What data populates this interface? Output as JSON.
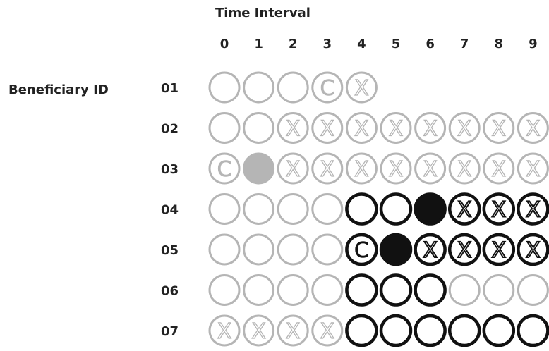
{
  "header": {
    "title": "Time Interval"
  },
  "y_axis": {
    "label": "Beneficiary ID"
  },
  "time_intervals": [
    "0",
    "1",
    "2",
    "3",
    "4",
    "5",
    "6",
    "7",
    "8",
    "9"
  ],
  "legend_markers": {
    "censored": "C"
  },
  "colors": {
    "light": "#b5b5b5",
    "dark": "#111111"
  },
  "rows": [
    {
      "id": "01",
      "cells": [
        {
          "t": 0,
          "tone": "light",
          "state": "open"
        },
        {
          "t": 1,
          "tone": "light",
          "state": "open"
        },
        {
          "t": 2,
          "tone": "light",
          "state": "open"
        },
        {
          "t": 3,
          "tone": "light",
          "state": "censored"
        },
        {
          "t": 4,
          "tone": "light",
          "state": "crossed"
        }
      ]
    },
    {
      "id": "02",
      "cells": [
        {
          "t": 0,
          "tone": "light",
          "state": "open"
        },
        {
          "t": 1,
          "tone": "light",
          "state": "open"
        },
        {
          "t": 2,
          "tone": "light",
          "state": "crossed"
        },
        {
          "t": 3,
          "tone": "light",
          "state": "crossed"
        },
        {
          "t": 4,
          "tone": "light",
          "state": "crossed"
        },
        {
          "t": 5,
          "tone": "light",
          "state": "crossed"
        },
        {
          "t": 6,
          "tone": "light",
          "state": "crossed"
        },
        {
          "t": 7,
          "tone": "light",
          "state": "crossed"
        },
        {
          "t": 8,
          "tone": "light",
          "state": "crossed"
        },
        {
          "t": 9,
          "tone": "light",
          "state": "crossed"
        }
      ]
    },
    {
      "id": "03",
      "cells": [
        {
          "t": 0,
          "tone": "light",
          "state": "censored"
        },
        {
          "t": 1,
          "tone": "light",
          "state": "filled"
        },
        {
          "t": 2,
          "tone": "light",
          "state": "crossed"
        },
        {
          "t": 3,
          "tone": "light",
          "state": "crossed"
        },
        {
          "t": 4,
          "tone": "light",
          "state": "crossed"
        },
        {
          "t": 5,
          "tone": "light",
          "state": "crossed"
        },
        {
          "t": 6,
          "tone": "light",
          "state": "crossed"
        },
        {
          "t": 7,
          "tone": "light",
          "state": "crossed"
        },
        {
          "t": 8,
          "tone": "light",
          "state": "crossed"
        },
        {
          "t": 9,
          "tone": "light",
          "state": "crossed"
        }
      ]
    },
    {
      "id": "04",
      "cells": [
        {
          "t": 0,
          "tone": "light",
          "state": "open"
        },
        {
          "t": 1,
          "tone": "light",
          "state": "open"
        },
        {
          "t": 2,
          "tone": "light",
          "state": "open"
        },
        {
          "t": 3,
          "tone": "light",
          "state": "open"
        },
        {
          "t": 4,
          "tone": "dark",
          "state": "open"
        },
        {
          "t": 5,
          "tone": "dark",
          "state": "open"
        },
        {
          "t": 6,
          "tone": "dark",
          "state": "filled"
        },
        {
          "t": 7,
          "tone": "dark",
          "state": "crossed"
        },
        {
          "t": 8,
          "tone": "dark",
          "state": "crossed"
        },
        {
          "t": 9,
          "tone": "dark",
          "state": "crossed"
        }
      ]
    },
    {
      "id": "05",
      "cells": [
        {
          "t": 0,
          "tone": "light",
          "state": "open"
        },
        {
          "t": 1,
          "tone": "light",
          "state": "open"
        },
        {
          "t": 2,
          "tone": "light",
          "state": "open"
        },
        {
          "t": 3,
          "tone": "light",
          "state": "open"
        },
        {
          "t": 4,
          "tone": "dark",
          "state": "censored"
        },
        {
          "t": 5,
          "tone": "dark",
          "state": "filled"
        },
        {
          "t": 6,
          "tone": "dark",
          "state": "crossed"
        },
        {
          "t": 7,
          "tone": "dark",
          "state": "crossed"
        },
        {
          "t": 8,
          "tone": "dark",
          "state": "crossed"
        },
        {
          "t": 9,
          "tone": "dark",
          "state": "crossed"
        }
      ]
    },
    {
      "id": "06",
      "cells": [
        {
          "t": 0,
          "tone": "light",
          "state": "open"
        },
        {
          "t": 1,
          "tone": "light",
          "state": "open"
        },
        {
          "t": 2,
          "tone": "light",
          "state": "open"
        },
        {
          "t": 3,
          "tone": "light",
          "state": "open"
        },
        {
          "t": 4,
          "tone": "dark",
          "state": "open"
        },
        {
          "t": 5,
          "tone": "dark",
          "state": "open"
        },
        {
          "t": 6,
          "tone": "dark",
          "state": "open"
        },
        {
          "t": 7,
          "tone": "light",
          "state": "open"
        },
        {
          "t": 8,
          "tone": "light",
          "state": "open"
        },
        {
          "t": 9,
          "tone": "light",
          "state": "open"
        }
      ]
    },
    {
      "id": "07",
      "cells": [
        {
          "t": 0,
          "tone": "light",
          "state": "crossed"
        },
        {
          "t": 1,
          "tone": "light",
          "state": "crossed"
        },
        {
          "t": 2,
          "tone": "light",
          "state": "crossed"
        },
        {
          "t": 3,
          "tone": "light",
          "state": "crossed"
        },
        {
          "t": 4,
          "tone": "dark",
          "state": "open"
        },
        {
          "t": 5,
          "tone": "dark",
          "state": "open"
        },
        {
          "t": 6,
          "tone": "dark",
          "state": "open"
        },
        {
          "t": 7,
          "tone": "dark",
          "state": "open"
        },
        {
          "t": 8,
          "tone": "dark",
          "state": "open"
        },
        {
          "t": 9,
          "tone": "dark",
          "state": "open"
        }
      ]
    }
  ]
}
